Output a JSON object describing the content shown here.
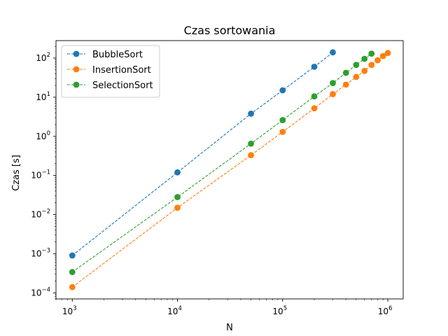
{
  "chart_data": {
    "type": "line",
    "title": "Czas sortowania",
    "xlabel": "N",
    "ylabel": "Czas [s]",
    "xscale": "log",
    "yscale": "log",
    "xlim": [
      700,
      1400000
    ],
    "ylim": [
      7e-05,
      280
    ],
    "grid": false,
    "legend_position": "top-left",
    "x_ticks": [
      {
        "base": "10",
        "exp": "3",
        "value": 1000
      },
      {
        "base": "10",
        "exp": "4",
        "value": 10000
      },
      {
        "base": "10",
        "exp": "5",
        "value": 100000
      },
      {
        "base": "10",
        "exp": "6",
        "value": 1000000
      }
    ],
    "y_ticks": [
      {
        "base": "10",
        "exp": "−4",
        "value": 0.0001
      },
      {
        "base": "10",
        "exp": "−3",
        "value": 0.001
      },
      {
        "base": "10",
        "exp": "−2",
        "value": 0.01
      },
      {
        "base": "10",
        "exp": "−1",
        "value": 0.1
      },
      {
        "base": "10",
        "exp": "0",
        "value": 1
      },
      {
        "base": "10",
        "exp": "1",
        "value": 10
      },
      {
        "base": "10",
        "exp": "2",
        "value": 100
      }
    ],
    "series": [
      {
        "name": "BubbleSort",
        "color": "#1f77b4",
        "x": [
          1000,
          10000,
          50000,
          100000,
          200000,
          300000
        ],
        "y": [
          0.0009,
          0.12,
          3.8,
          15,
          60,
          140
        ]
      },
      {
        "name": "InsertionSort",
        "color": "#ff7f0e",
        "x": [
          1000,
          10000,
          50000,
          100000,
          200000,
          300000,
          400000,
          500000,
          600000,
          700000,
          800000,
          900000,
          1000000
        ],
        "y": [
          0.00014,
          0.015,
          0.33,
          1.3,
          5.2,
          12,
          21,
          33,
          47,
          67,
          88,
          113,
          135
        ]
      },
      {
        "name": "SelectionSort",
        "color": "#2ca02c",
        "x": [
          1000,
          10000,
          50000,
          100000,
          200000,
          300000,
          400000,
          500000,
          600000,
          700000
        ],
        "y": [
          0.00034,
          0.028,
          0.65,
          2.6,
          10.5,
          23,
          42,
          67,
          96,
          130
        ]
      }
    ]
  }
}
